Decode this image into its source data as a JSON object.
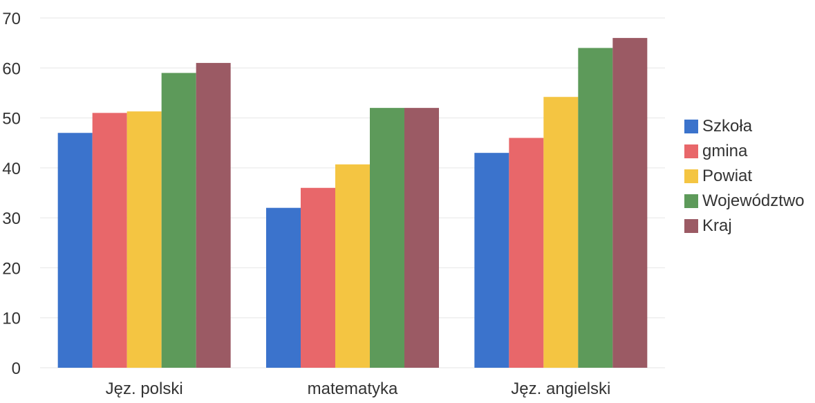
{
  "chart_data": {
    "type": "bar",
    "title": "",
    "xlabel": "",
    "ylabel": "",
    "categories": [
      "Jęz. polski",
      "matematyka",
      "Jęz. angielski"
    ],
    "ylim": [
      0,
      70
    ],
    "yticks": [
      "0",
      "10",
      "20",
      "30",
      "40",
      "50",
      "60",
      "70"
    ],
    "grid": true,
    "legend_position": "right",
    "series": [
      {
        "name": "Szkoła",
        "color": "#3b73cc",
        "values": [
          47,
          32,
          43
        ]
      },
      {
        "name": "gmina",
        "color": "#e8676a",
        "values": [
          51,
          36,
          46
        ]
      },
      {
        "name": "Powiat",
        "color": "#f4c542",
        "values": [
          51.3,
          40.7,
          54.2
        ]
      },
      {
        "name": "Województwo",
        "color": "#5d9a5a",
        "values": [
          59,
          52,
          64
        ]
      },
      {
        "name": "Kraj",
        "color": "#9b5a64",
        "values": [
          61,
          52,
          66
        ]
      }
    ]
  }
}
